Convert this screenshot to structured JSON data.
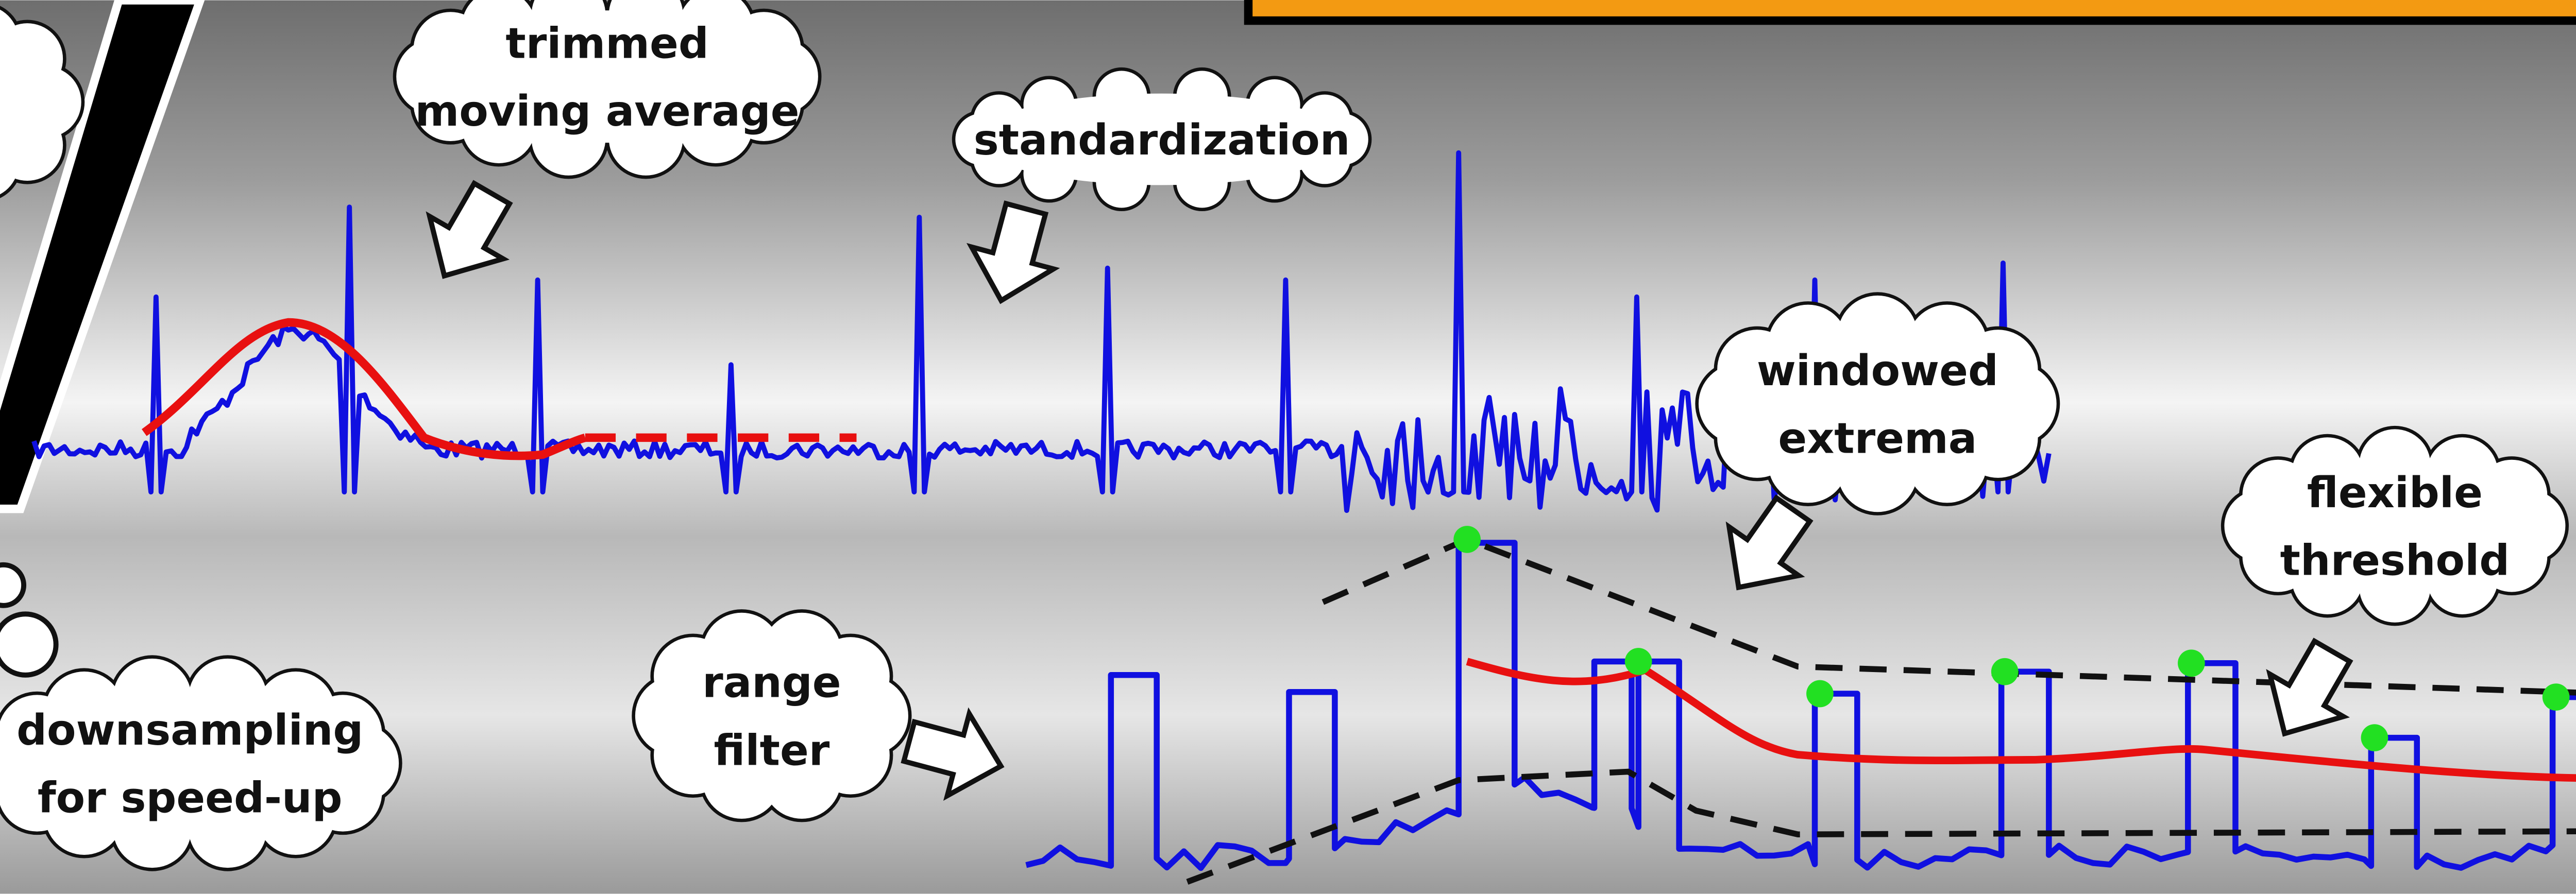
{
  "callouts": [
    {
      "lines": [
        "trimmed",
        "moving average"
      ]
    },
    {
      "lines": [
        "standardization"
      ]
    },
    {
      "lines": [
        "windowed",
        "extrema"
      ]
    },
    {
      "lines": [
        "flexible",
        "threshold"
      ]
    },
    {
      "lines": [
        "range",
        "filter"
      ]
    },
    {
      "lines": [
        "downsampling",
        "for speed-up"
      ]
    }
  ]
}
